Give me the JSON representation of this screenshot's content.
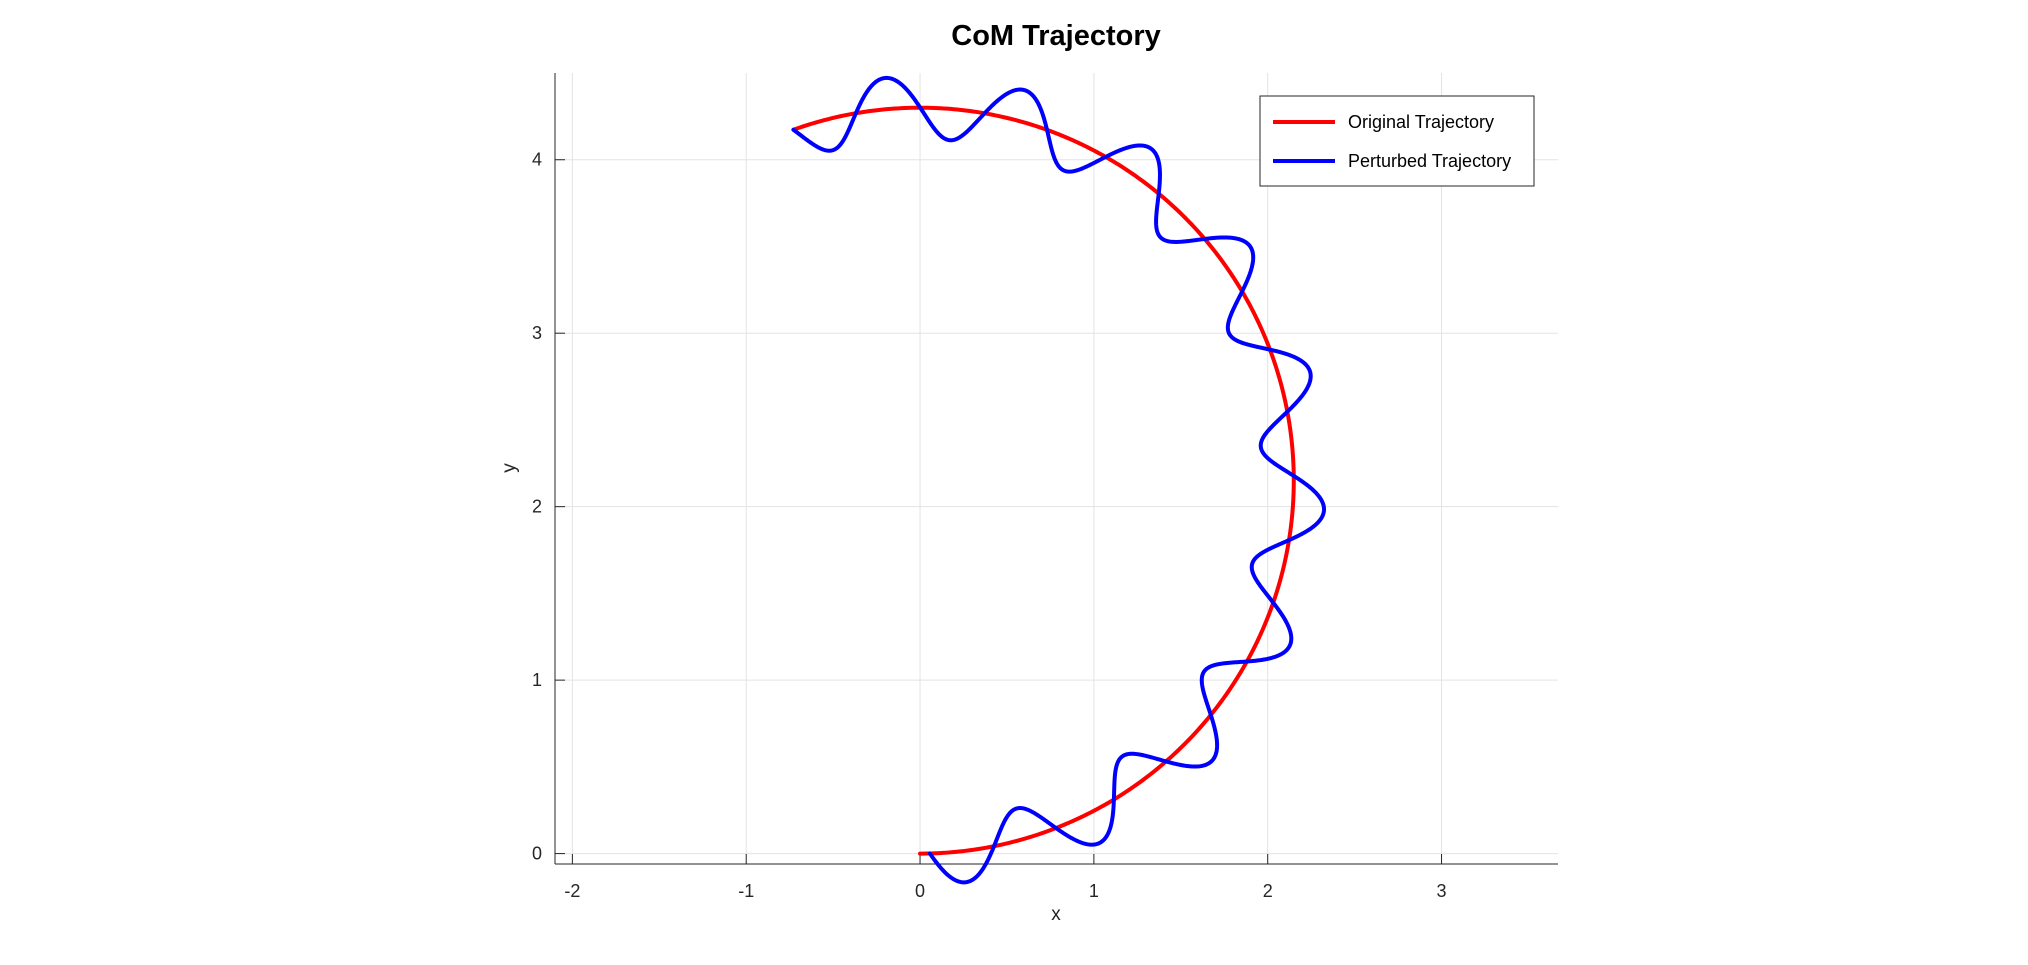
{
  "chart_data": {
    "type": "line",
    "title": "CoM Trajectory",
    "xlabel": "x",
    "ylabel": "y",
    "xlim": [
      -2.1,
      3.67
    ],
    "ylim": [
      -0.06,
      4.5
    ],
    "xticks": [
      -2,
      -1,
      0,
      1,
      2,
      3
    ],
    "yticks": [
      0,
      1,
      2,
      3,
      4
    ],
    "grid": true,
    "legend_position": "top-right",
    "series": [
      {
        "name": "Original Trajectory",
        "color": "#ff0000",
        "model": "arc",
        "center": [
          0,
          2.15
        ],
        "radius": 2.15,
        "start_angle_deg": -90,
        "end_angle_deg": 109.8,
        "samples": 400
      },
      {
        "name": "Perturbed Trajectory",
        "color": "#0000ff",
        "model": "arc-with-ripple",
        "center": [
          0,
          2.15
        ],
        "radius": 2.15,
        "start_angle_deg": -88.5,
        "end_angle_deg": 109.8,
        "ripple_amplitude": 0.18,
        "ripple_cycles": 10,
        "samples": 1600
      }
    ]
  }
}
